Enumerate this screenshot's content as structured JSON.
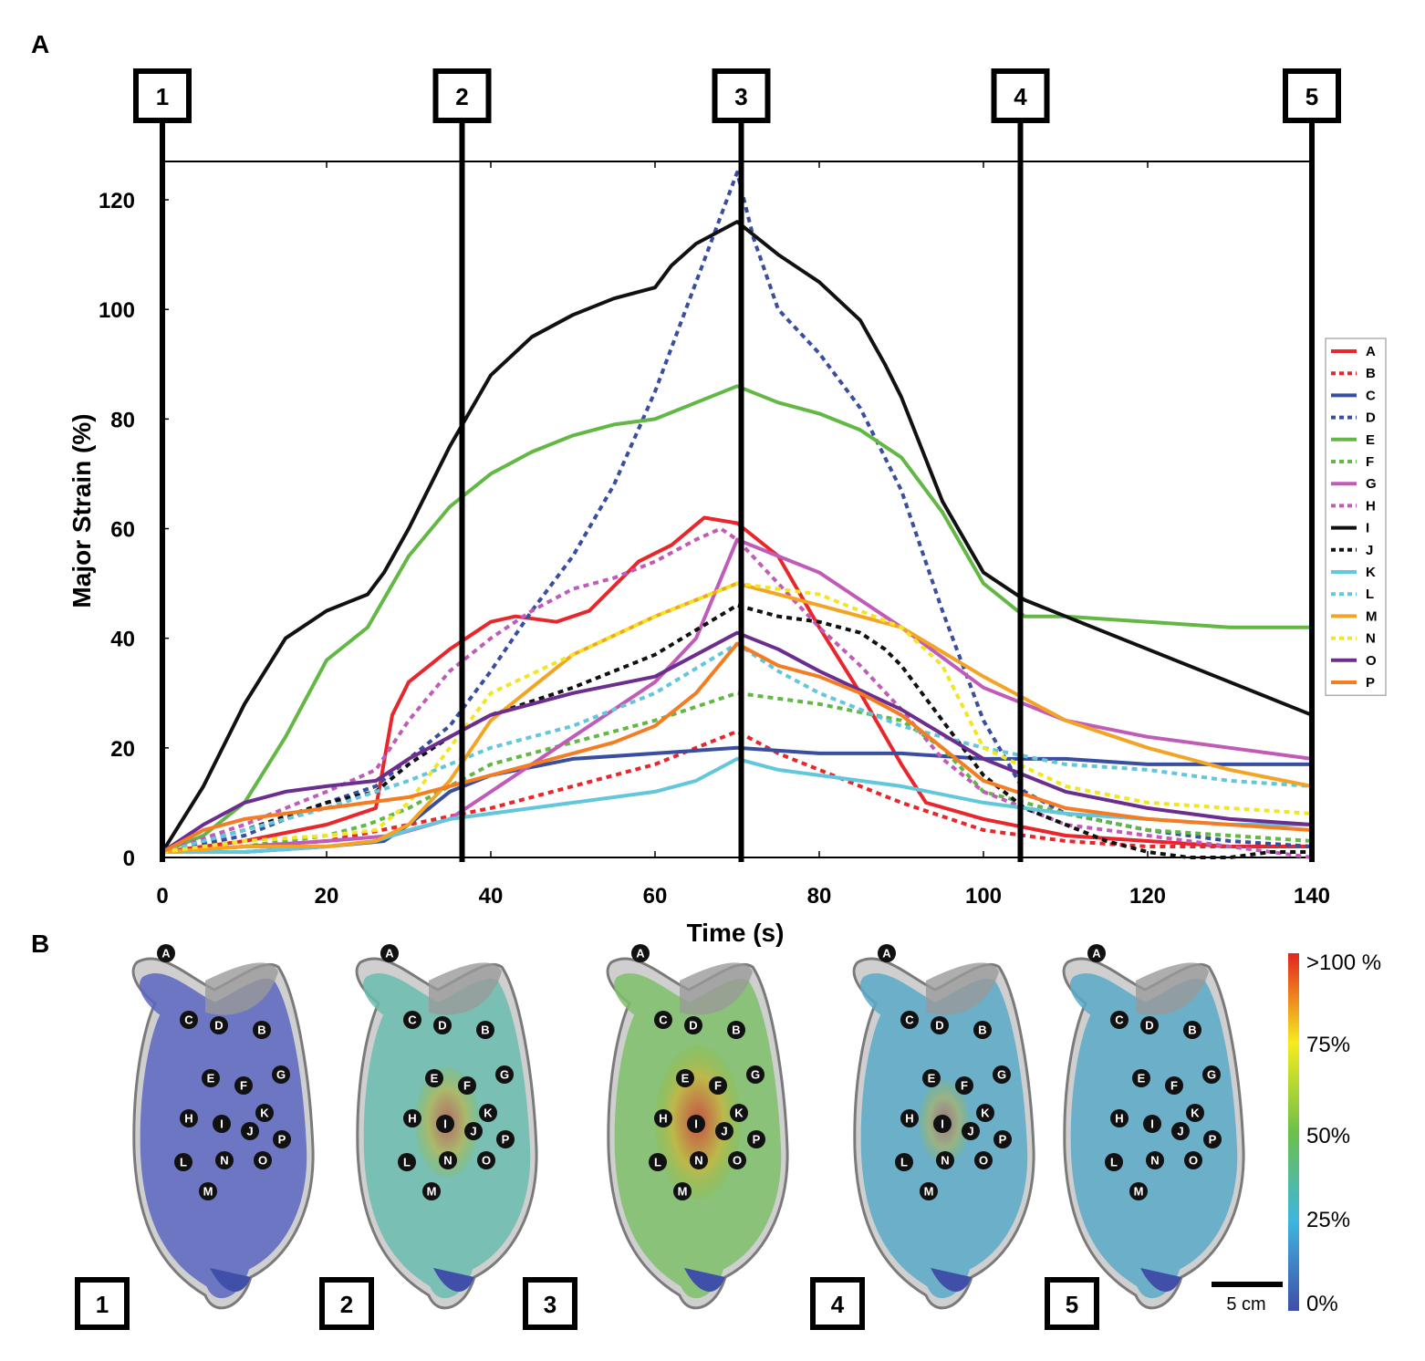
{
  "panels": {
    "a_label": "A",
    "b_label": "B"
  },
  "colors": {
    "A": "#e8262b",
    "B": "#e8262b",
    "C": "#3a4ea0",
    "D": "#3a4ea0",
    "E": "#63b845",
    "F": "#63b845",
    "G": "#c05cb8",
    "H": "#c05cb8",
    "I": "#111111",
    "J": "#111111",
    "K": "#62c6dd",
    "L": "#62c6dd",
    "M": "#f3a424",
    "N": "#f2e623",
    "O": "#6b2d8e",
    "P": "#f47c22"
  },
  "chart_data": {
    "type": "line",
    "title": "",
    "xlabel": "Time (s)",
    "ylabel": "Major Strain (%)",
    "xlim": [
      0,
      140
    ],
    "ylim": [
      0,
      127
    ],
    "xticks": [
      0,
      20,
      40,
      60,
      80,
      100,
      120,
      140
    ],
    "yticks": [
      0,
      20,
      40,
      60,
      80,
      100,
      120
    ],
    "legend_position": "right",
    "stage_markers": [
      {
        "label": "1",
        "x": 0
      },
      {
        "label": "2",
        "x": 36.5
      },
      {
        "label": "3",
        "x": 70.5
      },
      {
        "label": "4",
        "x": 104.5
      },
      {
        "label": "5",
        "x": 140
      }
    ],
    "series": [
      {
        "name": "A",
        "style": "solid",
        "x": [
          0,
          10,
          20,
          26,
          28,
          30,
          35,
          40,
          43,
          48,
          52,
          58,
          62,
          66,
          70,
          75,
          80,
          85,
          90,
          93,
          100,
          110,
          120,
          130,
          140
        ],
        "y": [
          1,
          3,
          6,
          9,
          26,
          32,
          38,
          43,
          44,
          43,
          45,
          54,
          57,
          62,
          61,
          55,
          42,
          30,
          17,
          10,
          7,
          4,
          3,
          2,
          2
        ]
      },
      {
        "name": "B",
        "style": "dashed",
        "x": [
          0,
          10,
          20,
          30,
          40,
          45,
          50,
          55,
          60,
          65,
          70,
          75,
          80,
          85,
          90,
          100,
          110,
          120,
          130,
          140
        ],
        "y": [
          1,
          2,
          3,
          6,
          9,
          11,
          13,
          15,
          17,
          20,
          23,
          19,
          16,
          13,
          10,
          5,
          3,
          2,
          2,
          2
        ]
      },
      {
        "name": "C",
        "style": "solid",
        "x": [
          0,
          10,
          20,
          27,
          30,
          35,
          40,
          50,
          60,
          70,
          80,
          90,
          100,
          110,
          120,
          130,
          140
        ],
        "y": [
          1,
          1,
          2,
          3,
          6,
          12,
          15,
          18,
          19,
          20,
          19,
          19,
          18,
          18,
          17,
          17,
          17
        ]
      },
      {
        "name": "D",
        "style": "dashed",
        "x": [
          0,
          10,
          20,
          26,
          30,
          35,
          40,
          45,
          50,
          55,
          60,
          65,
          68,
          70,
          72,
          75,
          80,
          85,
          90,
          95,
          100,
          105,
          110,
          120,
          130,
          140
        ],
        "y": [
          1,
          4,
          10,
          13,
          18,
          24,
          34,
          45,
          55,
          68,
          85,
          105,
          117,
          125,
          113,
          100,
          92,
          82,
          67,
          45,
          25,
          12,
          8,
          5,
          3,
          2
        ]
      },
      {
        "name": "E",
        "style": "solid",
        "x": [
          0,
          5,
          10,
          15,
          20,
          25,
          30,
          35,
          40,
          45,
          50,
          55,
          60,
          65,
          70,
          75,
          80,
          85,
          90,
          95,
          100,
          105,
          110,
          120,
          130,
          140
        ],
        "y": [
          1,
          4,
          10,
          22,
          36,
          42,
          55,
          64,
          70,
          74,
          77,
          79,
          80,
          83,
          86,
          83,
          81,
          78,
          73,
          63,
          50,
          44,
          44,
          43,
          42,
          42
        ]
      },
      {
        "name": "F",
        "style": "dashed",
        "x": [
          0,
          10,
          20,
          25,
          30,
          35,
          40,
          50,
          60,
          70,
          80,
          90,
          95,
          100,
          110,
          120,
          130,
          140
        ],
        "y": [
          1,
          2,
          4,
          6,
          9,
          13,
          17,
          21,
          25,
          30,
          28,
          25,
          20,
          12,
          8,
          5,
          4,
          3
        ]
      },
      {
        "name": "G",
        "style": "solid",
        "x": [
          0,
          10,
          20,
          28,
          35,
          40,
          50,
          60,
          65,
          70,
          75,
          80,
          90,
          100,
          110,
          120,
          130,
          140
        ],
        "y": [
          1,
          2,
          3,
          4,
          7,
          12,
          22,
          32,
          40,
          58,
          55,
          52,
          42,
          31,
          25,
          22,
          20,
          18
        ]
      },
      {
        "name": "H",
        "style": "dashed",
        "x": [
          0,
          10,
          20,
          26,
          30,
          35,
          40,
          45,
          50,
          55,
          60,
          65,
          68,
          70,
          75,
          80,
          85,
          90,
          95,
          100,
          110,
          120,
          130,
          140
        ],
        "y": [
          1,
          6,
          12,
          16,
          25,
          34,
          40,
          45,
          49,
          51,
          54,
          58,
          60,
          58,
          50,
          42,
          35,
          27,
          18,
          12,
          6,
          4,
          2,
          0
        ]
      },
      {
        "name": "I",
        "style": "solid",
        "x": [
          0,
          5,
          10,
          15,
          20,
          25,
          27,
          30,
          35,
          40,
          45,
          50,
          55,
          60,
          62,
          65,
          70,
          75,
          80,
          85,
          88,
          90,
          95,
          100,
          105,
          110,
          120,
          130,
          140
        ],
        "y": [
          1,
          13,
          28,
          40,
          45,
          48,
          52,
          60,
          75,
          88,
          95,
          99,
          102,
          104,
          108,
          112,
          116,
          110,
          105,
          98,
          90,
          84,
          65,
          52,
          47,
          44,
          38,
          32,
          26
        ]
      },
      {
        "name": "J",
        "style": "dashed",
        "x": [
          0,
          10,
          20,
          26,
          30,
          35,
          40,
          50,
          60,
          70,
          75,
          80,
          85,
          88,
          90,
          95,
          100,
          105,
          110,
          115,
          120,
          125,
          130,
          135,
          140
        ],
        "y": [
          1,
          5,
          10,
          12,
          17,
          22,
          26,
          31,
          37,
          46,
          44,
          43,
          41,
          38,
          35,
          25,
          15,
          9,
          6,
          3,
          1,
          0,
          0,
          1,
          1
        ]
      },
      {
        "name": "K",
        "style": "solid",
        "x": [
          0,
          10,
          20,
          26,
          30,
          35,
          40,
          50,
          60,
          65,
          70,
          75,
          80,
          90,
          100,
          110,
          120,
          130,
          140
        ],
        "y": [
          1,
          1,
          2,
          3,
          5,
          7,
          8,
          10,
          12,
          14,
          18,
          16,
          15,
          13,
          10,
          8,
          7,
          6,
          6
        ]
      },
      {
        "name": "L",
        "style": "dashed",
        "x": [
          0,
          10,
          20,
          26,
          30,
          35,
          40,
          50,
          60,
          70,
          75,
          80,
          90,
          100,
          110,
          120,
          130,
          140
        ],
        "y": [
          1,
          5,
          9,
          12,
          14,
          17,
          20,
          24,
          30,
          39,
          34,
          30,
          24,
          20,
          17,
          16,
          14,
          13
        ]
      },
      {
        "name": "M",
        "style": "solid",
        "x": [
          0,
          10,
          20,
          26,
          30,
          35,
          40,
          50,
          60,
          70,
          80,
          90,
          100,
          110,
          120,
          130,
          140
        ],
        "y": [
          1,
          2,
          2,
          3,
          6,
          14,
          25,
          37,
          44,
          50,
          46,
          42,
          33,
          25,
          20,
          16,
          13
        ]
      },
      {
        "name": "N",
        "style": "dashed",
        "x": [
          0,
          10,
          20,
          26,
          30,
          35,
          40,
          50,
          60,
          70,
          80,
          90,
          95,
          100,
          110,
          120,
          130,
          140
        ],
        "y": [
          1,
          3,
          4,
          5,
          10,
          20,
          30,
          37,
          44,
          50,
          48,
          42,
          35,
          20,
          13,
          10,
          9,
          8
        ]
      },
      {
        "name": "O",
        "style": "solid",
        "x": [
          0,
          5,
          10,
          15,
          20,
          26,
          30,
          35,
          40,
          50,
          60,
          65,
          70,
          75,
          80,
          90,
          100,
          110,
          120,
          130,
          140
        ],
        "y": [
          1,
          6,
          10,
          12,
          13,
          14,
          18,
          22,
          26,
          30,
          33,
          37,
          41,
          38,
          34,
          27,
          18,
          12,
          9,
          7,
          6
        ]
      },
      {
        "name": "P",
        "style": "solid",
        "x": [
          0,
          5,
          10,
          15,
          20,
          25,
          30,
          35,
          40,
          45,
          50,
          55,
          60,
          65,
          70,
          75,
          80,
          85,
          90,
          95,
          100,
          110,
          120,
          130,
          140
        ],
        "y": [
          1,
          5,
          7,
          8,
          9,
          10,
          11,
          13,
          15,
          17,
          19,
          21,
          24,
          30,
          39,
          35,
          33,
          30,
          26,
          20,
          14,
          9,
          7,
          6,
          5
        ]
      }
    ]
  },
  "panel_b": {
    "images": [
      {
        "label": "1",
        "level": 0.06
      },
      {
        "label": "2",
        "level": 0.42
      },
      {
        "label": "3",
        "level": 0.62
      },
      {
        "label": "4",
        "level": 0.3
      },
      {
        "label": "5",
        "level": 0.16
      }
    ],
    "points": [
      "A",
      "B",
      "C",
      "D",
      "E",
      "F",
      "G",
      "H",
      "I",
      "J",
      "K",
      "L",
      "M",
      "N",
      "O",
      "P"
    ],
    "colorbar_labels": [
      ">100 %",
      "75%",
      "50%",
      "25%",
      "0%"
    ],
    "scale_bar_label": "5 cm"
  }
}
